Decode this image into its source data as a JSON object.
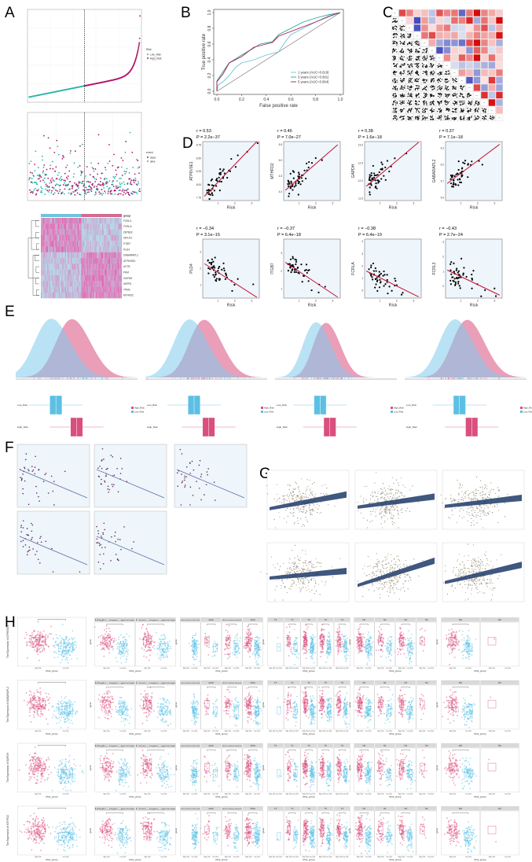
{
  "colors": {
    "high": "#d94f7e",
    "low": "#5cc0e4",
    "teal": "#2fb5a9",
    "magenta": "#b0156f",
    "fit_red": "#c8102e",
    "panel_bg": "#eef5fb",
    "band": "#1f3a68"
  },
  "panel_letters": [
    "A",
    "B",
    "C",
    "D",
    "E",
    "F",
    "G",
    "H"
  ],
  "chart_data": [
    {
      "panel": "A-risk",
      "type": "scatter",
      "legend_title": "Risk",
      "legend": [
        "Low_Risk",
        "High_Risk"
      ],
      "legend_placement": "right",
      "median_line": "dashed",
      "grid": true
    },
    {
      "panel": "A-survival",
      "type": "scatter",
      "legend_title": "event",
      "legend": [
        "dead",
        "alive"
      ],
      "legend_placement": "right",
      "median_line": "dashed",
      "grid": true
    },
    {
      "panel": "A-heatmap",
      "type": "heatmap",
      "legend_title": "group",
      "genes": [
        "FCRL3",
        "FCRLA",
        "ZBTB32",
        "IGFLR1",
        "ITGB7",
        "PLD4",
        "GABARAPL2",
        "ATP6V0E1",
        "ACTB",
        "PKM",
        "GAPDH",
        "KDPR1",
        "TPM3",
        "MTHFD2"
      ],
      "groups": [
        "Low_Risk",
        "High_Risk"
      ]
    },
    {
      "panel": "B",
      "type": "line",
      "xlabel": "False positive rate",
      "ylabel": "True positive rate",
      "xticks": [
        "0.0",
        "0.2",
        "0.4",
        "0.6",
        "0.8",
        "1.0"
      ],
      "yticks": [
        "0.0",
        "0.2",
        "0.4",
        "0.6",
        "0.8",
        "1.0"
      ],
      "xlim": [
        0,
        1
      ],
      "ylim": [
        0,
        1
      ],
      "legend_placement": "bottom-right",
      "series": [
        {
          "name": "1 years (AUC=0.619)",
          "color": "#6cc0d8",
          "points": [
            [
              0,
              0
            ],
            [
              0.01,
              0.08
            ],
            [
              0.05,
              0.12
            ],
            [
              0.1,
              0.2
            ],
            [
              0.15,
              0.3
            ],
            [
              0.2,
              0.36
            ],
            [
              0.3,
              0.4
            ],
            [
              0.4,
              0.46
            ],
            [
              0.5,
              0.5
            ],
            [
              0.55,
              0.62
            ],
            [
              0.6,
              0.72
            ],
            [
              0.7,
              0.8
            ],
            [
              0.8,
              0.88
            ],
            [
              0.9,
              0.94
            ],
            [
              1,
              1
            ]
          ]
        },
        {
          "name": "3 years (AUC=0.691)",
          "color": "#2aa58f",
          "points": [
            [
              0,
              0
            ],
            [
              0,
              0.13
            ],
            [
              0.05,
              0.25
            ],
            [
              0.1,
              0.36
            ],
            [
              0.2,
              0.46
            ],
            [
              0.3,
              0.55
            ],
            [
              0.35,
              0.6
            ],
            [
              0.45,
              0.63
            ],
            [
              0.5,
              0.72
            ],
            [
              0.6,
              0.8
            ],
            [
              0.7,
              0.88
            ],
            [
              0.8,
              0.93
            ],
            [
              0.9,
              0.97
            ],
            [
              1,
              1
            ]
          ]
        },
        {
          "name": "5 years (AUC=0.664)",
          "color": "#a3195b",
          "points": [
            [
              0,
              0
            ],
            [
              0,
              0.12
            ],
            [
              0.05,
              0.22
            ],
            [
              0.1,
              0.36
            ],
            [
              0.2,
              0.44
            ],
            [
              0.3,
              0.56
            ],
            [
              0.4,
              0.6
            ],
            [
              0.45,
              0.62
            ],
            [
              0.5,
              0.7
            ],
            [
              0.6,
              0.76
            ],
            [
              0.7,
              0.82
            ],
            [
              0.8,
              0.88
            ],
            [
              0.9,
              0.95
            ],
            [
              1,
              1
            ]
          ]
        }
      ]
    },
    {
      "panel": "C",
      "type": "heatmap",
      "colors": [
        "#2c3e9e",
        "#ffffff",
        "#d10000"
      ]
    },
    {
      "panel": "D",
      "type": "scatter",
      "xlabel": "Risk",
      "xticks": [
        1,
        2,
        3
      ],
      "xlim": [
        0.1,
        3.45
      ],
      "subplots": [
        {
          "gene": "ATP6V0E1",
          "r": "r = 0.53",
          "p": "P = 2.2e−37",
          "yticks": [
            "7.75",
            "8.00",
            "8.25",
            "8.50",
            "8.75"
          ],
          "ytick_values": [
            7.75,
            8,
            8.25,
            8.5,
            8.75
          ],
          "ylim": [
            7.7,
            8.82
          ],
          "fit": [
            7.78,
            8.82
          ]
        },
        {
          "gene": "MTHFD2",
          "r": "r = 0.46",
          "p": "P = 7.0e−27",
          "yticks": [
            "4.0",
            "4.5",
            "5.0",
            "5.5"
          ],
          "ytick_values": [
            4,
            4.5,
            5,
            5.5
          ],
          "ylim": [
            3.72,
            5.6
          ],
          "fit": [
            4.05,
            5.5
          ]
        },
        {
          "gene": "GAPDH",
          "r": "r = 0.38",
          "p": "P = 1.6e−18",
          "yticks": [
            "11.5",
            "12.0",
            "12.5",
            "13.0"
          ],
          "ytick_values": [
            11.5,
            12,
            12.5,
            13
          ],
          "ylim": [
            11.45,
            13.1
          ],
          "fit": [
            11.85,
            13.08
          ]
        },
        {
          "gene": "GABARAPL2",
          "r": "r = 0.37",
          "p": "P = 7.1e−18",
          "yticks": [
            "5.4",
            "5.7",
            "6.0",
            "6.3"
          ],
          "ytick_values": [
            5.4,
            5.7,
            6,
            6.3
          ],
          "ylim": [
            5.35,
            6.42
          ],
          "fit": [
            5.66,
            6.37
          ]
        },
        {
          "gene": "PLD4",
          "r": "r = −0.34",
          "p": "P = 3.1e−15",
          "yticks": [
            "1",
            "2",
            "3"
          ],
          "ytick_values": [
            1,
            2,
            3
          ],
          "ylim": [
            0.2,
            3.8
          ],
          "fit": [
            2.3,
            0.25
          ]
        },
        {
          "gene": "ITGB7",
          "r": "r = −0.37",
          "p": "P = 6.4e−18",
          "yticks": [
            "1",
            "2",
            "3"
          ],
          "ytick_values": [
            1,
            2,
            3
          ],
          "ylim": [
            0.5,
            3.8
          ],
          "fit": [
            2.5,
            0.55
          ]
        },
        {
          "gene": "FCRLA",
          "r": "r = −0.38",
          "p": "P = 6.4e−19",
          "yticks": [
            "0",
            "1",
            "2",
            "3",
            "4"
          ],
          "ytick_values": [
            0,
            1,
            2,
            3,
            4
          ],
          "ylim": [
            -0.6,
            4.2
          ],
          "fit": [
            1.6,
            -0.5
          ]
        },
        {
          "gene": "FCRL3",
          "r": "r = −0.43",
          "p": "P = 2.7e−24",
          "yticks": [
            "0",
            "1",
            "2",
            "3"
          ],
          "ytick_values": [
            0,
            1,
            2,
            3
          ],
          "ylim": [
            -0.8,
            3.2
          ],
          "fit": [
            1.1,
            -0.6
          ]
        }
      ]
    },
    {
      "panel": "E",
      "type": "area",
      "legend": [
        "High_Risk",
        "Low_Risk"
      ],
      "legend_placement": "right",
      "box_categories": [
        "Low_Risk",
        "High_Risk"
      ],
      "count": 4
    },
    {
      "panel": "F",
      "type": "scatter",
      "count": 5
    },
    {
      "panel": "G",
      "type": "scatter",
      "count": 6
    },
    {
      "panel": "H",
      "type": "scatter",
      "xlabel": "Risk_group",
      "ticks": [
        "High_Risk",
        "Low_Risk"
      ],
      "ylabels": [
        "The Expression of ATP6V0E1",
        "The Expression of GABARAPL2",
        "The Expression of GAPDH",
        "The Expression of MTHFD2"
      ],
      "facet_ylabel": "gene",
      "facets": {
        "age": [
          "High_age_group",
          "Low_age_group"
        ],
        "race": [
          "american indian or alaska native",
          "asian",
          "black or african american",
          "white"
        ],
        "t": [
          "TX",
          "T1",
          "T2",
          "T3",
          "T4"
        ],
        "n": [
          "N0",
          "N1",
          "N2",
          "N3"
        ],
        "m": [
          "M0",
          "M1"
        ]
      }
    }
  ]
}
